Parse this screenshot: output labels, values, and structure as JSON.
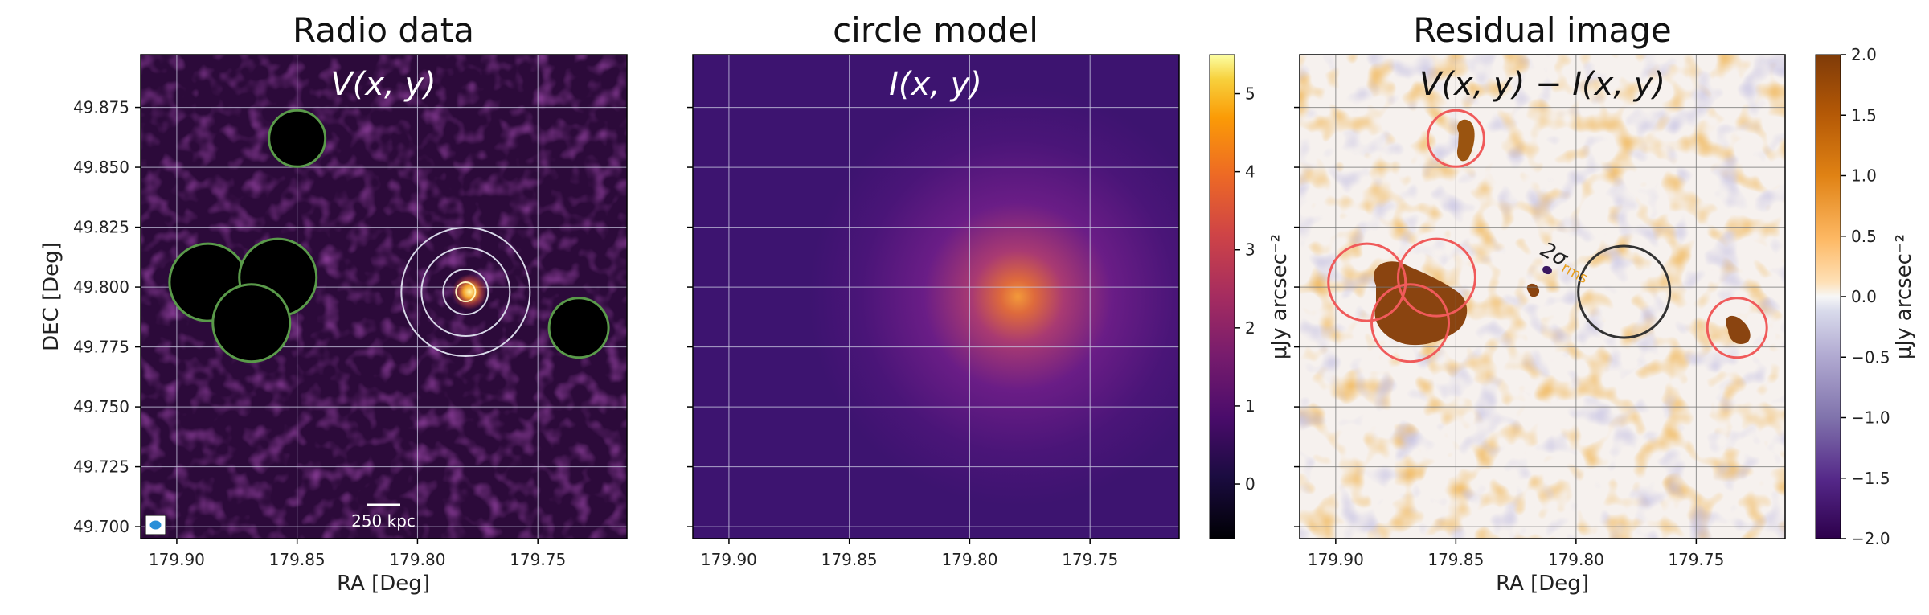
{
  "chart_data": [
    {
      "type": "heatmap",
      "title": "Radio data",
      "annotation": "V(x, y)",
      "xlabel": "RA [Deg]",
      "ylabel": "DEC [Deg]",
      "xticks": [
        "179.90",
        "179.85",
        "179.80",
        "179.75"
      ],
      "yticks": [
        "49.875",
        "49.850",
        "49.825",
        "49.800",
        "49.775",
        "49.750",
        "49.725",
        "49.700"
      ],
      "xlim": [
        179.915,
        179.713
      ],
      "ylim": [
        49.695,
        49.897
      ],
      "grid": true,
      "colormap": "inferno",
      "center": {
        "ra": 179.78,
        "dec": 49.798
      },
      "masked_regions": [
        {
          "ra": 179.85,
          "dec": 49.862
        },
        {
          "ra": 179.887,
          "dec": 49.802
        },
        {
          "ra": 179.858,
          "dec": 49.804
        },
        {
          "ra": 179.869,
          "dec": 49.785
        },
        {
          "ra": 179.733,
          "dec": 49.783
        }
      ],
      "scale_bar_label": "250 kpc"
    },
    {
      "type": "heatmap",
      "title": "circle model",
      "annotation": "I(x, y)",
      "xlabel": "",
      "ylabel": "",
      "xticks": [
        "179.90",
        "179.85",
        "179.80",
        "179.75"
      ],
      "xlim": [
        179.915,
        179.713
      ],
      "grid": true,
      "colormap": "inferno",
      "peak": {
        "ra": 179.78,
        "dec": 49.796
      },
      "colorbar": {
        "label": "μJy arcsec⁻²",
        "ticks": [
          "5",
          "4",
          "3",
          "2",
          "1",
          "0"
        ],
        "range": [
          -0.7,
          5.5
        ]
      }
    },
    {
      "type": "heatmap",
      "title": "Residual image",
      "annotation": "V(x, y) − I(x, y)",
      "xlabel": "RA [Deg]",
      "ylabel": "",
      "xticks": [
        "179.90",
        "179.85",
        "179.80",
        "179.75"
      ],
      "xlim": [
        179.915,
        179.713
      ],
      "grid": true,
      "colormap": "PuOr_r",
      "sigma_label": "2σ",
      "sigma_sub": "rms",
      "colorbar": {
        "label": "μJy arcsec⁻²",
        "ticks": [
          "2.0",
          "1.5",
          "1.0",
          "0.5",
          "0.0",
          "−0.5",
          "−1.0",
          "−1.5",
          "−2.0"
        ],
        "range": [
          -2.0,
          2.0
        ]
      }
    }
  ],
  "colors": {
    "grid_light": "#c8c8e0",
    "grid_dark": "#777777",
    "mask_green": "#5a9a4a",
    "red_contour": "#f05a5a",
    "sigma_circle": "#333333",
    "sigma_text": "#222222",
    "sigma_sub": "#e8a020",
    "beam_fill": "#2a8fd8"
  }
}
